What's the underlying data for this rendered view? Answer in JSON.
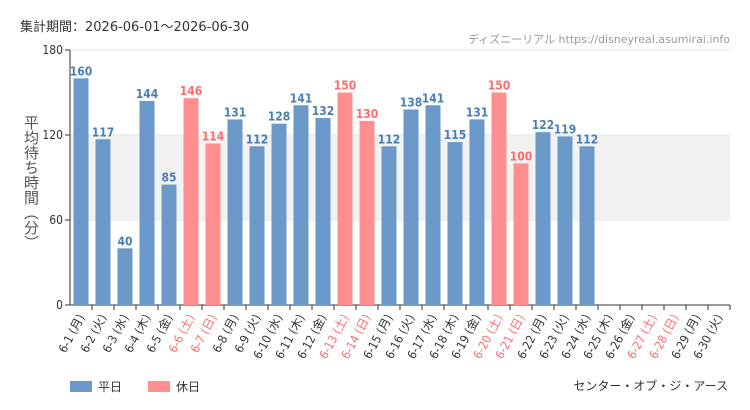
{
  "header": {
    "period": "集計期間：2026-06-01～2026-06-30",
    "watermark": "ディズニーリアル https://disneyreal.asumirai.info"
  },
  "footer": {
    "park": "センター・オブ・ジ・アース"
  },
  "legend": [
    {
      "label": "平日",
      "color": "#6a98c8"
    },
    {
      "label": "休日",
      "color": "#ff8f8f"
    }
  ],
  "chart_data": {
    "type": "bar",
    "ylabel": "平均待ち時間（分）",
    "ylim": [
      0,
      180
    ],
    "yticks": [
      0,
      60,
      120,
      180
    ],
    "shaded_band": [
      60,
      120
    ],
    "categories": [
      "6-1 (月)",
      "6-2 (火)",
      "6-3 (水)",
      "6-4 (木)",
      "6-5 (金)",
      "6-6 (土)",
      "6-7 (日)",
      "6-8 (月)",
      "6-9 (火)",
      "6-10 (水)",
      "6-11 (木)",
      "6-12 (金)",
      "6-13 (土)",
      "6-14 (日)",
      "6-15 (月)",
      "6-16 (火)",
      "6-17 (水)",
      "6-18 (木)",
      "6-19 (金)",
      "6-20 (土)",
      "6-21 (日)",
      "6-22 (月)",
      "6-23 (火)",
      "6-24 (水)",
      "6-25 (木)",
      "6-26 (金)",
      "6-27 (土)",
      "6-28 (日)",
      "6-29 (月)",
      "6-30 (火)"
    ],
    "values": [
      160,
      117,
      40,
      144,
      85,
      146,
      114,
      131,
      112,
      128,
      141,
      132,
      150,
      130,
      112,
      138,
      141,
      115,
      131,
      150,
      100,
      122,
      119,
      112,
      null,
      null,
      null,
      null,
      null,
      null
    ],
    "day_type": [
      "平日",
      "平日",
      "平日",
      "平日",
      "平日",
      "休日",
      "休日",
      "平日",
      "平日",
      "平日",
      "平日",
      "平日",
      "休日",
      "休日",
      "平日",
      "平日",
      "平日",
      "平日",
      "平日",
      "休日",
      "休日",
      "平日",
      "平日",
      "平日",
      "平日",
      "平日",
      "休日",
      "休日",
      "平日",
      "平日"
    ],
    "colors": {
      "平日": "#6a98c8",
      "休日": "#ff8f8f",
      "平日_text": "#4a7fb5",
      "休日_text": "#ff6b6b",
      "band": "#f2f2f2",
      "grid": "#e6e6e6",
      "axis": "#333333"
    }
  }
}
